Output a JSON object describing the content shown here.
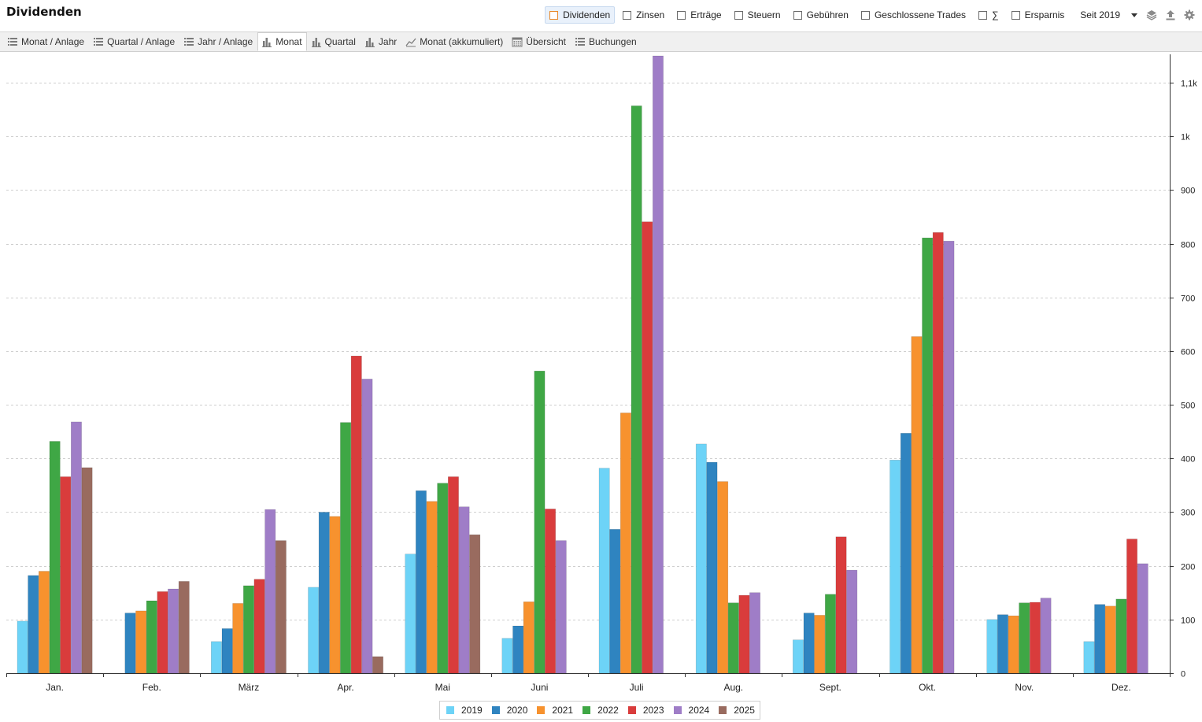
{
  "title": "Dividenden",
  "filters": [
    {
      "label": "Dividenden",
      "active": true
    },
    {
      "label": "Zinsen",
      "active": false
    },
    {
      "label": "Erträge",
      "active": false
    },
    {
      "label": "Steuern",
      "active": false
    },
    {
      "label": "Gebühren",
      "active": false
    },
    {
      "label": "Geschlossene Trades",
      "active": false
    },
    {
      "label": "∑",
      "active": false
    },
    {
      "label": "Ersparnis",
      "active": false
    }
  ],
  "period": {
    "selected": "Seit 2019"
  },
  "toolbar_icons": [
    "layers-icon",
    "export-icon",
    "settings-icon"
  ],
  "tabs": [
    {
      "label": "Monat / Anlage",
      "icon": "list-icon",
      "active": false
    },
    {
      "label": "Quartal / Anlage",
      "icon": "list-icon",
      "active": false
    },
    {
      "label": "Jahr / Anlage",
      "icon": "list-icon",
      "active": false
    },
    {
      "label": "Monat",
      "icon": "bar-chart-icon",
      "active": true
    },
    {
      "label": "Quartal",
      "icon": "bar-chart-icon",
      "active": false
    },
    {
      "label": "Jahr",
      "icon": "bar-chart-icon",
      "active": false
    },
    {
      "label": "Monat (akkumuliert)",
      "icon": "line-chart-icon",
      "active": false
    },
    {
      "label": "Übersicht",
      "icon": "calendar-icon",
      "active": false
    },
    {
      "label": "Buchungen",
      "icon": "list-icon",
      "active": false
    }
  ],
  "chart_data": {
    "type": "bar",
    "categories": [
      "Jan.",
      "Feb.",
      "März",
      "Apr.",
      "Mai",
      "Juni",
      "Juli",
      "Aug.",
      "Sept.",
      "Okt.",
      "Nov.",
      "Dez."
    ],
    "series": [
      {
        "name": "2019",
        "color": "#6dd3f7",
        "values": [
          97,
          0,
          59,
          160,
          222,
          65,
          382,
          427,
          62,
          397,
          100,
          59
        ]
      },
      {
        "name": "2020",
        "color": "#2f84c0",
        "values": [
          182,
          112,
          83,
          300,
          340,
          88,
          268,
          393,
          112,
          447,
          109,
          128
        ]
      },
      {
        "name": "2021",
        "color": "#f7922e",
        "values": [
          190,
          116,
          130,
          292,
          320,
          133,
          485,
          357,
          108,
          627,
          107,
          125
        ]
      },
      {
        "name": "2022",
        "color": "#3fa745",
        "values": [
          432,
          135,
          163,
          467,
          354,
          563,
          1057,
          131,
          147,
          811,
          131,
          138
        ]
      },
      {
        "name": "2023",
        "color": "#d93c3c",
        "values": [
          366,
          152,
          175,
          591,
          366,
          306,
          841,
          145,
          254,
          821,
          132,
          250
        ]
      },
      {
        "name": "2024",
        "color": "#9f7dc7",
        "values": [
          468,
          157,
          305,
          548,
          310,
          247,
          1150,
          150,
          192,
          805,
          140,
          204
        ]
      },
      {
        "name": "2025",
        "color": "#996b5f",
        "values": [
          383,
          171,
          247,
          31,
          258,
          0,
          0,
          0,
          0,
          0,
          0,
          0
        ]
      }
    ],
    "yticks": [
      {
        "value": 0,
        "label": "0"
      },
      {
        "value": 100,
        "label": "100"
      },
      {
        "value": 200,
        "label": "200"
      },
      {
        "value": 300,
        "label": "300"
      },
      {
        "value": 400,
        "label": "400"
      },
      {
        "value": 500,
        "label": "500"
      },
      {
        "value": 600,
        "label": "600"
      },
      {
        "value": 700,
        "label": "700"
      },
      {
        "value": 800,
        "label": "800"
      },
      {
        "value": 900,
        "label": "900"
      },
      {
        "value": 1000,
        "label": "1k"
      },
      {
        "value": 1100,
        "label": "1,1k"
      }
    ],
    "ylim": [
      0,
      1150
    ],
    "yaxis_side": "right",
    "grid": true,
    "legend_position": "bottom-center"
  }
}
